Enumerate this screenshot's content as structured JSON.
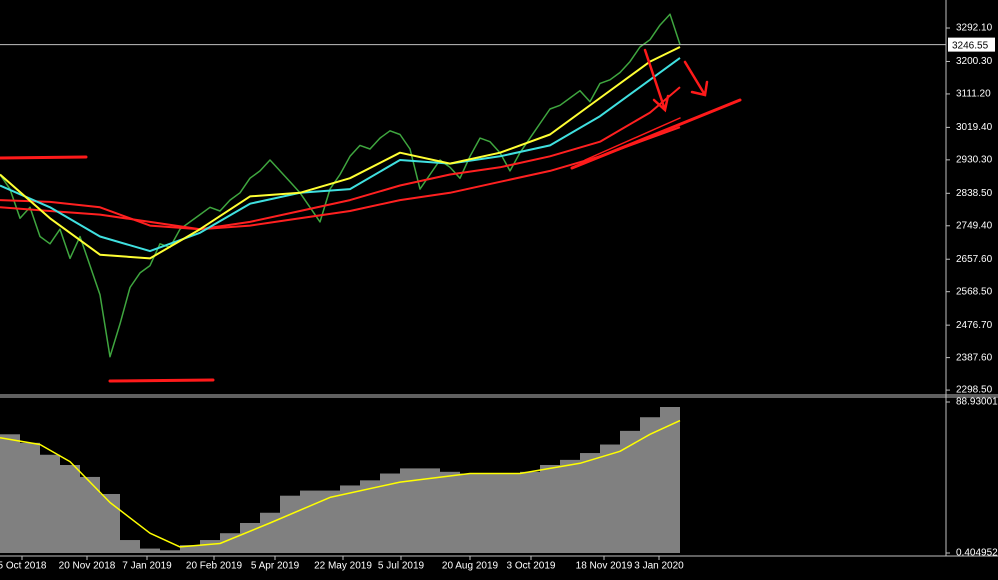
{
  "chart_data": [
    {
      "type": "line",
      "xlim": [
        0,
        94.6
      ],
      "ylim": [
        2285,
        3369
      ],
      "yticks": [
        {
          "value": 3292.1,
          "label": "3292.10"
        },
        {
          "value": 3200.3,
          "label": "3200.30"
        },
        {
          "value": 3111.2,
          "label": "3111.20"
        },
        {
          "value": 3019.4,
          "label": "3019.40"
        },
        {
          "value": 2930.3,
          "label": "2930.30"
        },
        {
          "value": 2838.5,
          "label": "2838.50"
        },
        {
          "value": 2749.4,
          "label": "2749.40"
        },
        {
          "value": 2657.6,
          "label": "2657.60"
        },
        {
          "value": 2568.5,
          "label": "2568.50"
        },
        {
          "value": 2476.7,
          "label": "2476.70"
        },
        {
          "value": 2387.6,
          "label": "2387.60"
        },
        {
          "value": 2298.5,
          "label": "2298.50"
        }
      ],
      "current_price": 3246.55,
      "series": [
        {
          "color": "#3fa63f",
          "values": [
            2890,
            2850,
            2770,
            2800,
            2720,
            2700,
            2740,
            2660,
            2720,
            2640,
            2560,
            2390,
            2480,
            2580,
            2620,
            2640,
            2700,
            2690,
            2740,
            2760,
            2780,
            2800,
            2790,
            2820,
            2840,
            2880,
            2900,
            2930,
            2900,
            2870,
            2840,
            2800,
            2760,
            2850,
            2890,
            2940,
            2970,
            2960,
            2990,
            3010,
            3000,
            2960,
            2850,
            2890,
            2930,
            2910,
            2880,
            2940,
            2990,
            2980,
            2950,
            2900,
            2950,
            2990,
            3030,
            3070,
            3080,
            3100,
            3120,
            3090,
            3140,
            3150,
            3170,
            3200,
            3240,
            3260,
            3300,
            3330,
            3247
          ]
        },
        {
          "color": "#ff2020",
          "x": [
            0,
            5,
            10,
            15,
            20,
            25,
            30,
            35,
            40,
            45,
            50,
            55,
            60,
            65,
            68
          ],
          "values": [
            2800,
            2790,
            2780,
            2760,
            2740,
            2750,
            2770,
            2790,
            2820,
            2840,
            2870,
            2900,
            2940,
            2990,
            3020
          ]
        },
        {
          "color": "#ff2020",
          "x": [
            0,
            5,
            10,
            15,
            20,
            25,
            30,
            35,
            40,
            45,
            50,
            55,
            60,
            65,
            68
          ],
          "values": [
            2820,
            2815,
            2800,
            2750,
            2740,
            2760,
            2790,
            2820,
            2860,
            2890,
            2910,
            2940,
            2980,
            3060,
            3130
          ]
        },
        {
          "color": "#40e0e0",
          "x": [
            0,
            5,
            10,
            15,
            20,
            25,
            30,
            35,
            40,
            45,
            50,
            55,
            60,
            65,
            68
          ],
          "values": [
            2860,
            2800,
            2720,
            2680,
            2730,
            2810,
            2840,
            2850,
            2930,
            2920,
            2940,
            2970,
            3050,
            3150,
            3210
          ]
        },
        {
          "color": "#ffff33",
          "x": [
            0,
            5,
            10,
            15,
            20,
            25,
            30,
            35,
            40,
            45,
            50,
            55,
            60,
            65,
            68
          ],
          "values": [
            2890,
            2770,
            2670,
            2660,
            2740,
            2830,
            2840,
            2880,
            2950,
            2920,
            2950,
            3000,
            3100,
            3200,
            3240
          ]
        }
      ]
    },
    {
      "type": "histogram",
      "xlim": [
        0,
        94.6
      ],
      "ylim": [
        0.404952,
        88.930013
      ],
      "yticks": [
        88.930013,
        0.404952
      ],
      "xticks": [
        {
          "value": 2.2,
          "label": "5 Oct 2018"
        },
        {
          "value": 8.7,
          "label": "20 Nov 2018"
        },
        {
          "value": 14.7,
          "label": "7 Jan 2019"
        },
        {
          "value": 21.4,
          "label": "20 Feb 2019"
        },
        {
          "value": 27.5,
          "label": "5 Apr 2019"
        },
        {
          "value": 34.3,
          "label": "22 May 2019"
        },
        {
          "value": 40.1,
          "label": "5 Jul 2019"
        },
        {
          "value": 47.0,
          "label": "20 Aug 2019"
        },
        {
          "value": 53.1,
          "label": "3 Oct 2019"
        },
        {
          "value": 60.4,
          "label": "18 Nov 2019"
        },
        {
          "value": 65.9,
          "label": "3 Jan 2020"
        }
      ],
      "bins": [
        0,
        2,
        4,
        6,
        8,
        10,
        12,
        14,
        16,
        18,
        20,
        22,
        24,
        26,
        28,
        30,
        32,
        34,
        36,
        38,
        40,
        42,
        44,
        46,
        48,
        50,
        52,
        54,
        56,
        58,
        60,
        62,
        64,
        66,
        68
      ],
      "values": [
        70,
        65,
        58,
        52,
        45,
        35,
        8,
        3,
        2,
        5,
        8,
        12,
        18,
        24,
        34,
        37,
        37,
        40,
        43,
        47,
        50,
        50,
        48,
        47,
        47,
        47,
        48,
        52,
        55,
        59,
        64,
        72,
        80,
        86
      ],
      "color": "#808080",
      "line": {
        "color": "#ffff00",
        "x": [
          0,
          4,
          7,
          11,
          15,
          18,
          22,
          27,
          33,
          40,
          47,
          52,
          58,
          62,
          65,
          68
        ],
        "values": [
          68,
          64,
          54,
          30,
          12,
          4,
          6,
          18,
          33,
          42,
          47,
          47,
          53,
          60,
          70,
          78
        ]
      }
    }
  ]
}
